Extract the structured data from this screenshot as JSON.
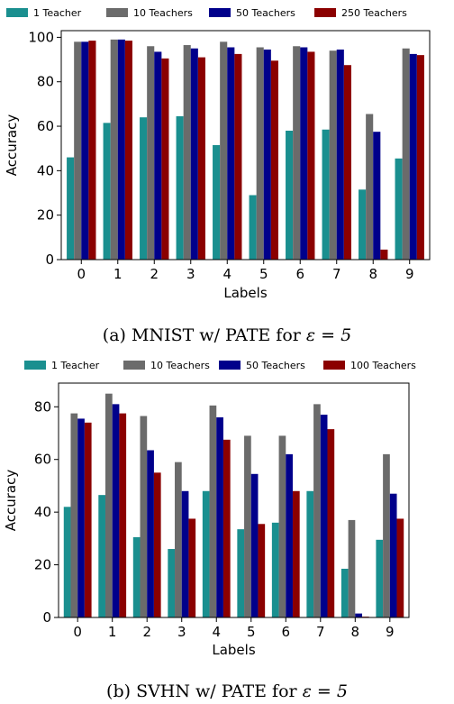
{
  "chart_data": [
    {
      "type": "bar",
      "caption": "(a) MNIST w/ PATE for ",
      "caption_math": "ε = 5",
      "xlabel": "Labels",
      "ylabel": "Accuracy",
      "categories": [
        "0",
        "1",
        "2",
        "3",
        "4",
        "5",
        "6",
        "7",
        "8",
        "9"
      ],
      "ylim": [
        0,
        103
      ],
      "yticks": [
        0,
        20,
        40,
        60,
        80,
        100
      ],
      "legend_position": "top",
      "series": [
        {
          "name": "1 Teacher",
          "color": "#1a8f8f",
          "values": [
            46,
            61.5,
            64,
            64.5,
            51.5,
            29,
            58,
            58.5,
            31.5,
            45.5
          ]
        },
        {
          "name": "10 Teachers",
          "color": "#6b6b6b",
          "values": [
            98,
            99,
            96,
            96.5,
            98,
            95.5,
            96,
            94,
            65.5,
            95
          ]
        },
        {
          "name": "50 Teachers",
          "color": "#00008b",
          "values": [
            98,
            99,
            93.5,
            95,
            95.5,
            94.5,
            95.5,
            94.5,
            57.5,
            92.5
          ]
        },
        {
          "name": "250 Teachers",
          "color": "#8b0000",
          "values": [
            98.5,
            98.5,
            90.5,
            91,
            92.5,
            89.5,
            93.5,
            87.5,
            4.5,
            92
          ]
        }
      ]
    },
    {
      "type": "bar",
      "caption": "(b) SVHN w/ PATE for ",
      "caption_math": "ε = 5",
      "xlabel": "Labels",
      "ylabel": "Accuracy",
      "categories": [
        "0",
        "1",
        "2",
        "3",
        "4",
        "5",
        "6",
        "7",
        "8",
        "9"
      ],
      "ylim": [
        0,
        89
      ],
      "yticks": [
        0,
        20,
        40,
        60,
        80
      ],
      "legend_position": "top",
      "series": [
        {
          "name": "1 Teacher",
          "color": "#1a8f8f",
          "values": [
            42,
            46.5,
            30.5,
            26,
            48,
            33.5,
            36,
            48,
            18.5,
            29.5
          ]
        },
        {
          "name": "10 Teachers",
          "color": "#6b6b6b",
          "values": [
            77.5,
            85,
            76.5,
            59,
            80.5,
            69,
            69,
            81,
            37,
            62
          ]
        },
        {
          "name": "50 Teachers",
          "color": "#00008b",
          "values": [
            75.5,
            81,
            63.5,
            48,
            76,
            54.5,
            62,
            77,
            1.5,
            47
          ]
        },
        {
          "name": "100 Teachers",
          "color": "#8b0000",
          "values": [
            74,
            77.5,
            55,
            37.5,
            67.5,
            35.5,
            48,
            71.5,
            0.3,
            37.5
          ]
        }
      ]
    }
  ]
}
